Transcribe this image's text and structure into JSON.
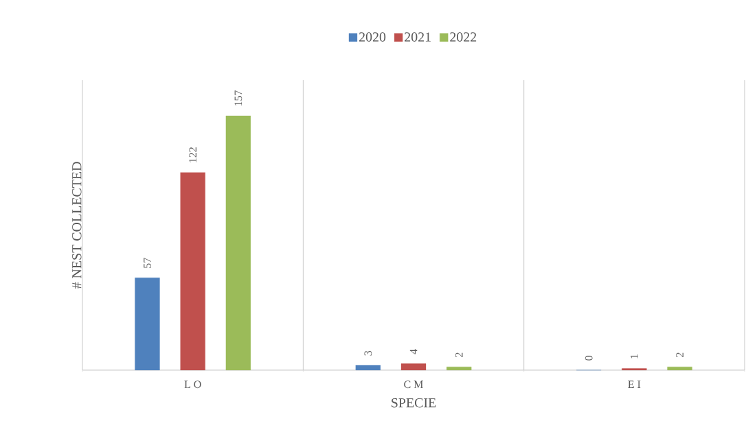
{
  "chart_data": {
    "type": "bar",
    "xlabel": "SPECIE",
    "ylabel": "# NEST COLLECTED",
    "categories": [
      "L O",
      "C M",
      "E I"
    ],
    "series": [
      {
        "name": "2020",
        "color": "#4f81bd",
        "values": [
          57,
          3,
          0
        ]
      },
      {
        "name": "2021",
        "color": "#c0504d",
        "values": [
          122,
          4,
          1
        ]
      },
      {
        "name": "2022",
        "color": "#9bbb59",
        "values": [
          157,
          2,
          2
        ]
      }
    ],
    "data_labels": true,
    "grid": "x",
    "legend": "top"
  }
}
